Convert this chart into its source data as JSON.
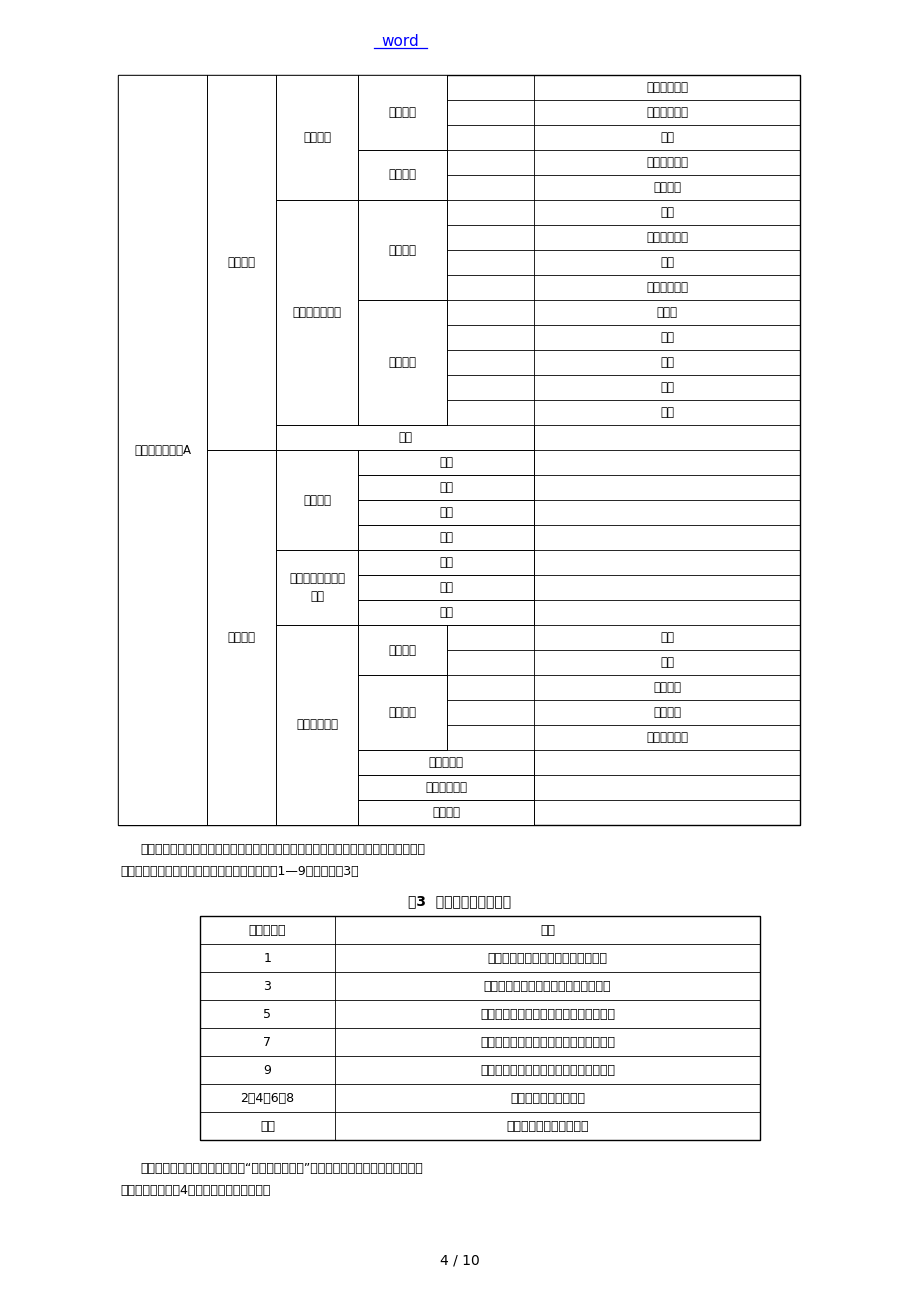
{
  "page_title": "word",
  "page_number": "4 / 10",
  "paragraph1_line1": "确定各项指标，并对它们进展逻辑关系表示后，就可以对每一层元素的隶属的下一层的",
  "paragraph1_line2": "元素之间进展两两比拟，并对其重要性程度进展1—9赋值。见表3：",
  "table2_title": "表3  重要性标度值含义表",
  "table2_headers": [
    "重要性标度",
    "含义"
  ],
  "table2_rows": [
    [
      "1",
      "表示两个元素相比，具有同等重要性"
    ],
    [
      "3",
      "表示两个元素相比，前者比后者稍重要"
    ],
    [
      "5",
      "表示两个元素相比，前者比后者明显重要"
    ],
    [
      "7",
      "表示两个元素相比，前者比后者强烈重要"
    ],
    [
      "9",
      "表示两个元素相比，前者比后者极端重要"
    ],
    [
      "2、4、6、8",
      "表示上述判断的中间值"
    ],
    [
      "倒数",
      "后者与前者的重要性比值"
    ]
  ],
  "paragraph2_line1": "由于层次、因素众多，将目标层“城中村住区形态”的下一层隶属子元素两两比拟构造",
  "paragraph2_line2": "的判断矩阵（见表4）作为例子来加以解释。"
}
